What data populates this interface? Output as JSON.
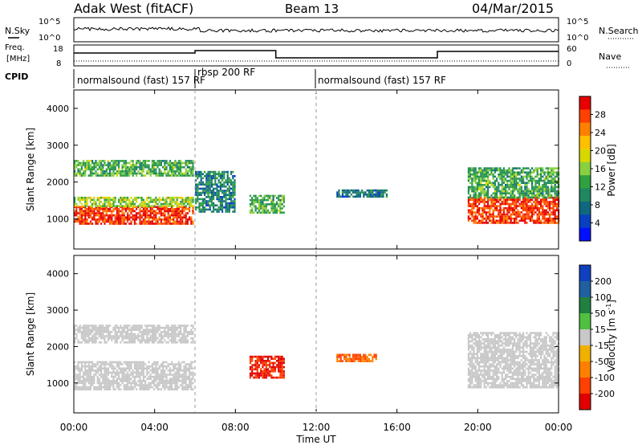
{
  "header": {
    "radar": "Adak West (fitACF)",
    "beam": "Beam 13",
    "date": "04/Mar/2015"
  },
  "top_panels": {
    "nsky_label": "N.Sky",
    "nsky_ticks": [
      "10^5",
      "10^0"
    ],
    "nsearch_label": "N.Search",
    "nsearch_ticks": [
      "10^5",
      "10^0"
    ],
    "freq_label_1": "Freq.",
    "freq_label_2": "[MHz]",
    "freq_ticks": [
      "18",
      "8"
    ],
    "nave_label": "Nave",
    "nave_ticks": [
      "60",
      "0"
    ],
    "cpid_label": "CPID"
  },
  "cpid_segments": [
    {
      "label": "normalsound (fast) 157 RF",
      "start_hour": 0
    },
    {
      "label": "rbsp 200 RF",
      "start_hour": 6
    },
    {
      "label": "normalsound (fast) 157 RF",
      "start_hour": 12
    }
  ],
  "power_colorbar": {
    "title": "Power [dB]",
    "ticks": [
      "28",
      "24",
      "20",
      "16",
      "12",
      "8",
      "4"
    ],
    "colors": [
      "#e60000",
      "#ff4000",
      "#ff8000",
      "#ffc000",
      "#d8d800",
      "#88d040",
      "#30a040",
      "#208860",
      "#106880",
      "#0840c0",
      "#0010ff"
    ]
  },
  "velocity_colorbar": {
    "title_main": "Velocity [m s",
    "title_sup": "-1",
    "title_end": "]",
    "ticks": [
      "200",
      "100",
      "50",
      "15",
      "-15",
      "-50",
      "-100",
      "-200"
    ],
    "colors": [
      "#1040c0",
      "#2060a0",
      "#208040",
      "#50c040",
      "#c8c8c8",
      "#f0b000",
      "#ff8000",
      "#ff4000",
      "#e00000"
    ]
  },
  "chart_data": {
    "type": "heatmap",
    "title": "Adak West (fitACF) Beam 13 04/Mar/2015",
    "xlabel": "Time UT",
    "ylabel": "Slant Range [km]",
    "x_ticks": [
      "00:00",
      "04:00",
      "08:00",
      "12:00",
      "16:00",
      "20:00",
      "00:00"
    ],
    "y_ticks": [
      "1000",
      "2000",
      "3000",
      "4000"
    ],
    "xlim_hours": [
      0,
      24
    ],
    "ylim_km": [
      180,
      4500
    ],
    "power_echo_regions": [
      {
        "t0": 0.0,
        "t1": 5.9,
        "r0": 850,
        "r1": 1350,
        "power_db": 28
      },
      {
        "t0": 0.0,
        "t1": 5.9,
        "r0": 1350,
        "r1": 1600,
        "power_db": 16
      },
      {
        "t0": 0.0,
        "t1": 5.9,
        "r0": 2150,
        "r1": 2600,
        "power_db": 12
      },
      {
        "t0": 6.0,
        "t1": 8.0,
        "r0": 1200,
        "r1": 2300,
        "power_db": 8
      },
      {
        "t0": 8.7,
        "t1": 10.4,
        "r0": 1150,
        "r1": 1650,
        "power_db": 12
      },
      {
        "t0": 13.0,
        "t1": 15.5,
        "r0": 1600,
        "r1": 1800,
        "power_db": 8
      },
      {
        "t0": 19.5,
        "t1": 24.0,
        "r0": 900,
        "r1": 1600,
        "power_db": 28
      },
      {
        "t0": 19.5,
        "t1": 24.0,
        "r0": 1600,
        "r1": 2400,
        "power_db": 12
      }
    ],
    "velocity_echo_regions": [
      {
        "t0": 0.0,
        "t1": 5.9,
        "r0": 850,
        "r1": 1600,
        "velocity": 0
      },
      {
        "t0": 0.0,
        "t1": 5.9,
        "r0": 2100,
        "r1": 2600,
        "velocity": 0
      },
      {
        "t0": 8.7,
        "t1": 10.4,
        "r0": 1150,
        "r1": 1750,
        "velocity": -200
      },
      {
        "t0": 13.0,
        "t1": 15.0,
        "r0": 1600,
        "r1": 1800,
        "velocity": -100
      },
      {
        "t0": 19.5,
        "t1": 24.0,
        "r0": 900,
        "r1": 2400,
        "velocity": 0
      }
    ]
  }
}
